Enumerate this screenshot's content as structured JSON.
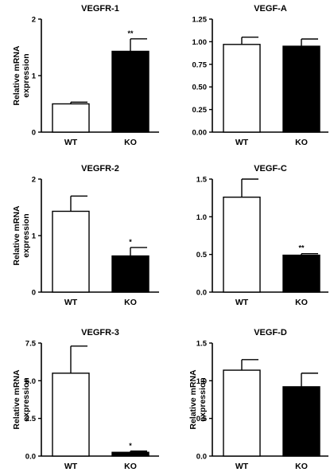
{
  "chart_data": [
    {
      "type": "bar",
      "title": "VEGFR-1",
      "ylabel": "Relative mRNA expression",
      "categories": [
        "WT",
        "KO"
      ],
      "values": [
        0.5,
        1.43
      ],
      "errors": [
        0.03,
        0.22
      ],
      "significance": [
        "",
        "**"
      ],
      "ylim": [
        0,
        2
      ],
      "yticks": [
        0,
        1,
        2
      ],
      "ytick_labels": [
        "0",
        "1",
        "2"
      ],
      "bar_colors": [
        "#ffffff",
        "#000000"
      ]
    },
    {
      "type": "bar",
      "title": "VEGF-A",
      "ylabel": "",
      "categories": [
        "WT",
        "KO"
      ],
      "values": [
        0.97,
        0.95
      ],
      "errors": [
        0.08,
        0.08
      ],
      "significance": [
        "",
        ""
      ],
      "ylim": [
        0,
        1.25
      ],
      "yticks": [
        0,
        0.25,
        0.5,
        0.75,
        1.0,
        1.25
      ],
      "ytick_labels": [
        "0.00",
        "0.25",
        "0.50",
        "0.75",
        "1.00",
        "1.25"
      ],
      "bar_colors": [
        "#ffffff",
        "#000000"
      ]
    },
    {
      "type": "bar",
      "title": "VEGFR-2",
      "ylabel": "Relative mRNA expression",
      "categories": [
        "WT",
        "KO"
      ],
      "values": [
        1.43,
        0.64
      ],
      "errors": [
        0.27,
        0.15
      ],
      "significance": [
        "",
        "*"
      ],
      "ylim": [
        0,
        2
      ],
      "yticks": [
        0,
        1,
        2
      ],
      "ytick_labels": [
        "0",
        "1",
        "2"
      ],
      "bar_colors": [
        "#ffffff",
        "#000000"
      ]
    },
    {
      "type": "bar",
      "title": "VEGF-C",
      "ylabel": "",
      "categories": [
        "WT",
        "KO"
      ],
      "values": [
        1.26,
        0.49
      ],
      "errors": [
        0.24,
        0.02
      ],
      "significance": [
        "",
        "**"
      ],
      "ylim": [
        0,
        1.5
      ],
      "yticks": [
        0,
        0.5,
        1.0,
        1.5
      ],
      "ytick_labels": [
        "0.0",
        "0.5",
        "1.0",
        "1.5"
      ],
      "bar_colors": [
        "#ffffff",
        "#000000"
      ]
    },
    {
      "type": "bar",
      "title": "VEGFR-3",
      "ylabel": "Relative mRNA expression",
      "categories": [
        "WT",
        "KO"
      ],
      "values": [
        5.5,
        0.25
      ],
      "errors": [
        1.8,
        0.08
      ],
      "significance": [
        "",
        "*"
      ],
      "ylim": [
        0,
        7.5
      ],
      "yticks": [
        0,
        2.5,
        5.0,
        7.5
      ],
      "ytick_labels": [
        "0.0",
        "2.5",
        "5.0",
        "7.5"
      ],
      "bar_colors": [
        "#ffffff",
        "#000000"
      ]
    },
    {
      "type": "bar",
      "title": "VEGF-D",
      "ylabel": "Relative mRNA expression",
      "categories": [
        "WT",
        "KO"
      ],
      "values": [
        1.14,
        0.92
      ],
      "errors": [
        0.14,
        0.18
      ],
      "significance": [
        "",
        ""
      ],
      "ylim": [
        0,
        1.5
      ],
      "yticks": [
        0,
        0.5,
        1.0,
        1.5
      ],
      "ytick_labels": [
        "0.0",
        "0.5",
        "1.0",
        "1.5"
      ],
      "bar_colors": [
        "#ffffff",
        "#000000"
      ]
    }
  ]
}
